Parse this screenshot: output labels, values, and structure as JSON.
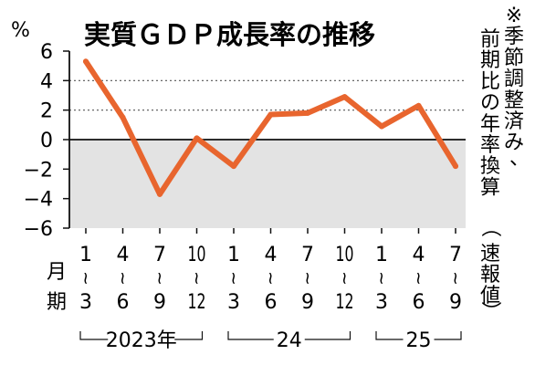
{
  "chart_data": {
    "type": "line",
    "title": "実質ＧＤＰ成長率の推移",
    "unit": "%",
    "note": "※季節調整済み、前期比の年率換算",
    "note_paren": "（速報値）",
    "period_label": [
      "月",
      "期"
    ],
    "ylim": [
      -6,
      6
    ],
    "yticks": [
      6,
      4,
      2,
      0,
      -2,
      -4,
      -6
    ],
    "shaded_range": [
      -6,
      0
    ],
    "dotted_gridlines": [
      4,
      2
    ],
    "categories": [
      {
        "top": "1",
        "bottom": "3"
      },
      {
        "top": "4",
        "bottom": "6"
      },
      {
        "top": "7",
        "bottom": "9"
      },
      {
        "top": "10",
        "bottom": "12"
      },
      {
        "top": "1",
        "bottom": "3"
      },
      {
        "top": "4",
        "bottom": "6"
      },
      {
        "top": "7",
        "bottom": "9"
      },
      {
        "top": "10",
        "bottom": "12"
      },
      {
        "top": "1",
        "bottom": "3"
      },
      {
        "top": "4",
        "bottom": "6"
      },
      {
        "top": "7",
        "bottom": "9"
      }
    ],
    "years": [
      {
        "label": "2023年",
        "from": 0,
        "to": 3
      },
      {
        "label": "24",
        "from": 4,
        "to": 7
      },
      {
        "label": "25",
        "from": 8,
        "to": 10
      }
    ],
    "series": [
      {
        "values": [
          5.3,
          1.5,
          -3.7,
          0.1,
          -1.8,
          1.7,
          1.8,
          2.9,
          0.9,
          2.3,
          -1.8
        ]
      }
    ],
    "colors": {
      "line": "#e8652e",
      "shade": "#e3e3e3",
      "axis": "#111111",
      "grid": "#555555"
    }
  }
}
